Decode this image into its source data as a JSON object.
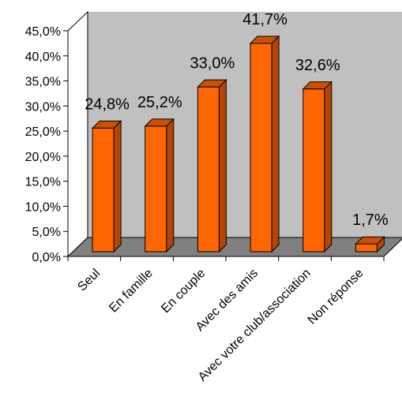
{
  "chart_data": {
    "type": "bar",
    "style": "3d-column",
    "title": "",
    "xlabel": "",
    "ylabel": "",
    "categories": [
      "Seul",
      "En famille",
      "En couple",
      "Avec des amis",
      "Avec votre club/association",
      "Non réponse"
    ],
    "values": [
      24.8,
      25.2,
      33.0,
      41.7,
      32.6,
      1.7
    ],
    "data_labels": [
      "24,8%",
      "25,2%",
      "33,0%",
      "41,7%",
      "32,6%",
      "1,7%"
    ],
    "y_ticks": [
      "0,0%",
      "5,0%",
      "10,0%",
      "15,0%",
      "20,0%",
      "25,0%",
      "30,0%",
      "35,0%",
      "40,0%",
      "45,0%"
    ],
    "ylim": [
      0,
      45
    ],
    "grid": false,
    "legend": "none",
    "colors": {
      "bar_front": "#ff6600",
      "bar_side": "#b34700",
      "bar_top": "#cc5200",
      "back_wall": "#c0c0c0",
      "floor": "#808080",
      "outline": "#000000"
    }
  }
}
